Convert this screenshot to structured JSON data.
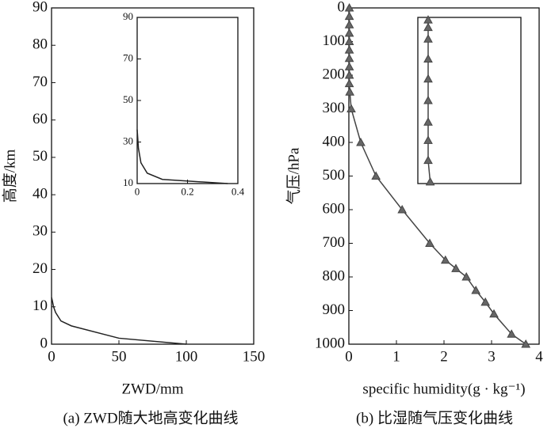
{
  "chart_data": [
    {
      "type": "line",
      "caption": "(a) ZWD随大地高变化曲线",
      "xlabel": "ZWD/mm",
      "ylabel": "高度/km",
      "xlim": [
        0,
        150
      ],
      "ylim": [
        0,
        90
      ],
      "xticks": [
        0,
        50,
        100,
        150
      ],
      "yticks": [
        0,
        10,
        20,
        30,
        40,
        50,
        60,
        70,
        80,
        90
      ],
      "x": [
        100,
        50,
        14.7,
        7,
        3,
        1.5,
        0.6,
        0
      ],
      "series": [
        {
          "color": "#222222",
          "values": [
            0,
            1.6,
            4.9,
            6.2,
            8.5,
            10,
            11.6,
            12.5
          ]
        }
      ]
    },
    {
      "type": "line",
      "xlim": [
        0,
        0.4
      ],
      "ylim": [
        10,
        90
      ],
      "xticks": [
        0,
        0.2,
        0.4
      ],
      "yticks": [
        10,
        30,
        50,
        70,
        90
      ],
      "x": [
        0.36,
        0.1,
        0.04,
        0.015,
        0.005,
        0
      ],
      "series": [
        {
          "color": "#222222",
          "values": [
            10,
            12,
            15,
            20,
            27,
            36
          ]
        }
      ]
    },
    {
      "type": "line",
      "caption": "(b) 比湿随气压变化曲线",
      "xlabel": "specific humidity(g · kg⁻¹)",
      "ylabel": "气压/hPa",
      "xlim": [
        0,
        4
      ],
      "ylim": [
        0,
        1000
      ],
      "y_inverted": true,
      "xticks": [
        0,
        1,
        2,
        3,
        4
      ],
      "yticks": [
        0,
        100,
        200,
        300,
        400,
        500,
        600,
        700,
        800,
        900,
        1000
      ],
      "marker": "triangle",
      "x": [
        0.01,
        0.01,
        0.01,
        0.01,
        0.01,
        0.01,
        0.01,
        0.01,
        0.01,
        0.01,
        0.02,
        0.05,
        0.25,
        0.57,
        1.12,
        1.7,
        2.03,
        2.25,
        2.47,
        2.67,
        2.87,
        3.05,
        3.42,
        3.72
      ],
      "series": [
        {
          "color": "#444444",
          "values": [
            0,
            25,
            50,
            75,
            100,
            125,
            150,
            175,
            200,
            225,
            250,
            300,
            400,
            500,
            600,
            700,
            750,
            775,
            800,
            840,
            875,
            910,
            970,
            1000
          ]
        }
      ]
    },
    {
      "type": "line",
      "xlim": [
        0,
        1
      ],
      "ylim": [
        0,
        1000
      ],
      "y_inverted": true,
      "marker": "triangle",
      "x": [
        0.1,
        0.1,
        0.1,
        0.1,
        0.1,
        0.1,
        0.1,
        0.1,
        0.1,
        0.12
      ],
      "series": [
        {
          "color": "#444444",
          "values": [
            15,
            60,
            130,
            250,
            370,
            500,
            630,
            740,
            860,
            990
          ]
        }
      ]
    }
  ]
}
